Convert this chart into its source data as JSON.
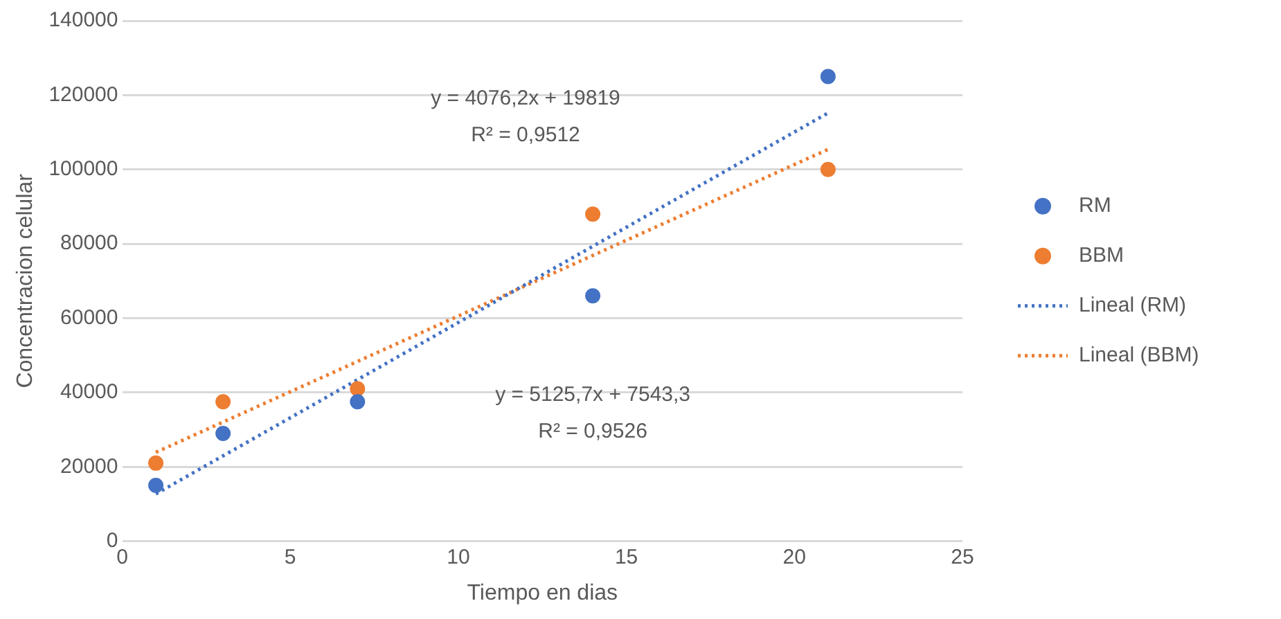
{
  "chart_data": {
    "type": "scatter",
    "xlabel": "Tiempo en dias",
    "ylabel": "Concentracion celular",
    "xlim": [
      0,
      25
    ],
    "xticks": [
      0,
      5,
      10,
      15,
      20,
      25
    ],
    "ylim": [
      0,
      140000
    ],
    "yticks": [
      0,
      20000,
      40000,
      60000,
      80000,
      100000,
      120000,
      140000
    ],
    "grid": "y",
    "legend": "right",
    "marker": "circle",
    "series": [
      {
        "name": "RM",
        "type": "scatter",
        "color": "#4472c4",
        "x": [
          1,
          3,
          7,
          14,
          21
        ],
        "values": [
          15000,
          29000,
          37500,
          66000,
          125000
        ]
      },
      {
        "name": "BBM",
        "type": "scatter",
        "color": "#ed7d31",
        "x": [
          1,
          3,
          7,
          14,
          21
        ],
        "values": [
          21000,
          37500,
          41000,
          88000,
          100000
        ]
      },
      {
        "name": "Lineal (RM)",
        "type": "line",
        "color": "#4472c4",
        "line_style": "dotted",
        "marker": "none",
        "x": [
          1,
          21
        ],
        "values": [
          12700,
          115200
        ]
      },
      {
        "name": "Lineal (BBM)",
        "type": "line",
        "color": "#ed7d31",
        "line_style": "dotted",
        "marker": "none",
        "x": [
          1,
          21
        ],
        "values": [
          23900,
          105400
        ]
      }
    ],
    "annotations": [
      "y = 4076,2x + 19819",
      "R² = 0,9512",
      "y = 5125,7x + 7543,3",
      "R² = 0,9526"
    ]
  }
}
